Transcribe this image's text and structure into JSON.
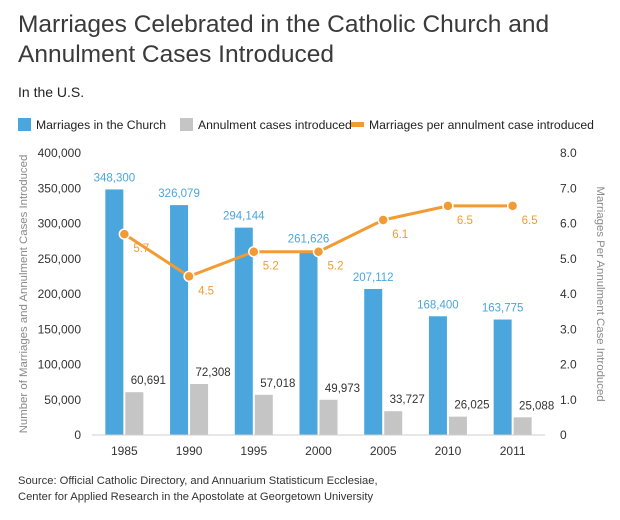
{
  "title": "Marriages Celebrated in the Catholic Church and Annulment Cases Introduced",
  "subtitle": "In the U.S.",
  "source_lines": [
    "Source: Official Catholic Directory, and Annuarium Statisticum Ecclesiae,",
    "Center for Applied Research in the Apostolate at Georgetown University"
  ],
  "colors": {
    "marriages": "#4aa6dc",
    "annulments": "#c5c5c5",
    "ratio": "#f29b34",
    "axis_text": "#333333",
    "ylabel": "#8a8a8a"
  },
  "chart_data": {
    "type": "bar",
    "categories": [
      "1985",
      "1990",
      "1995",
      "2000",
      "2005",
      "2010",
      "2011"
    ],
    "series": [
      {
        "name": "Marriages in the Church",
        "type": "bar",
        "axis": "left",
        "values": [
          348300,
          326079,
          294144,
          261626,
          207112,
          168400,
          163775
        ],
        "labels": [
          "348,300",
          "326,079",
          "294,144",
          "261,626",
          "207,112",
          "168,400",
          "163,775"
        ]
      },
      {
        "name": "Annulment cases introduced",
        "type": "bar",
        "axis": "left",
        "values": [
          60691,
          72308,
          57018,
          49973,
          33727,
          26025,
          25088
        ],
        "labels": [
          "60,691",
          "72,308",
          "57,018",
          "49,973",
          "33,727",
          "26,025",
          "25,088"
        ]
      },
      {
        "name": "Marriages per annulment case introduced",
        "type": "line",
        "axis": "right",
        "values": [
          5.7,
          4.5,
          5.2,
          5.2,
          6.1,
          6.5,
          6.5
        ],
        "labels": [
          "5.7",
          "4.5",
          "5.2",
          "5.2",
          "6.1",
          "6.5",
          "6.5"
        ]
      }
    ],
    "ylabel": "Number of Marriages and Annulment Cases Introduced",
    "y2label": "Marriages Per Annulment Case Introduced",
    "ylim": [
      0,
      400000
    ],
    "y2lim": [
      0,
      8
    ],
    "yticks": [
      "0",
      "50,000",
      "100,000",
      "150,000",
      "200,000",
      "250,000",
      "300,000",
      "350,000",
      "400,000"
    ],
    "y2ticks": [
      "0",
      "1.0",
      "2.0",
      "3.0",
      "4.0",
      "5.0",
      "6.0",
      "7.0",
      "8.0"
    ],
    "grid": false,
    "legend": "top"
  }
}
